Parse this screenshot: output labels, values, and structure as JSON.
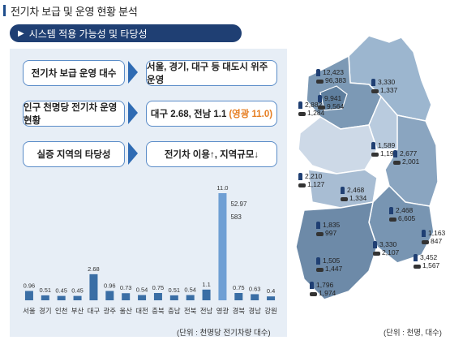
{
  "header": {
    "title": "전기차 보급 및 운영 현황 분석"
  },
  "banner": {
    "arrow": "▶",
    "label": "시스템 적용 가능성 및 타당성"
  },
  "rows": [
    {
      "left": "전기차 보급 운영 대수",
      "right": "서울, 경기, 대구 등 대도시 위주 운영"
    },
    {
      "left": "인구 천명당 전기차 운영 현황",
      "right_main": "대구 2.68, 전남 1.1",
      "right_hl": "(영광 11.0)"
    },
    {
      "left": "실증 지역의 타당성",
      "right": "전기차 이용↑, 지역규모↓"
    }
  ],
  "chart_data": {
    "type": "bar",
    "categories": [
      "서울",
      "경기",
      "인천",
      "부산",
      "대구",
      "광주",
      "울산",
      "대전",
      "충북",
      "충남",
      "전북",
      "전남",
      "영광",
      "경북",
      "경남",
      "강원"
    ],
    "values": [
      0.96,
      0.51,
      0.45,
      0.45,
      2.68,
      0.96,
      0.73,
      0.54,
      0.75,
      0.51,
      0.54,
      1.1,
      11.0,
      0.75,
      0.63,
      0.4
    ],
    "value_labels": [
      "0.96",
      "0.51",
      "0.45",
      "0.45",
      "2.68",
      "0.96",
      "0.73",
      "0.54",
      "0.75",
      "0.51",
      "0.54",
      "1.1",
      "11.0",
      "0.75",
      "0.63",
      "0.4"
    ],
    "highlight_index": 12,
    "ylim": [
      0,
      11.5
    ],
    "annotation": {
      "lines": [
        "52.97",
        "583"
      ]
    },
    "unit": "(단위 : 천명당 전기차량 대수)"
  },
  "map": {
    "unit": "(단위 : 천명, 대수)",
    "regions": [
      {
        "a": "12,423",
        "b": "96,383"
      },
      {
        "a": "3,330",
        "b": "1,337"
      },
      {
        "a": "2,882",
        "b": "1,284"
      },
      {
        "a": "9,941",
        "b": "9,564"
      },
      {
        "a": "1,589",
        "b": "1,199"
      },
      {
        "a": "2,210",
        "b": "1,127"
      },
      {
        "a": "2,677",
        "b": "2,001"
      },
      {
        "a": "2,468",
        "b": "1,334"
      },
      {
        "a": "2,468",
        "b": "6,605"
      },
      {
        "a": "1,835",
        "b": "997"
      },
      {
        "a": "1,163",
        "b": "847"
      },
      {
        "a": "3,330",
        "b": "2,107"
      },
      {
        "a": "3,452",
        "b": "1,567"
      },
      {
        "a": "1,505",
        "b": "1,447"
      },
      {
        "a": "1,796",
        "b": "1,974"
      }
    ]
  },
  "colors": {
    "navy": "#1f3f73",
    "bar": "#3a6ea5",
    "highlight": "#6f9fd4",
    "accent": "#e67e22"
  }
}
